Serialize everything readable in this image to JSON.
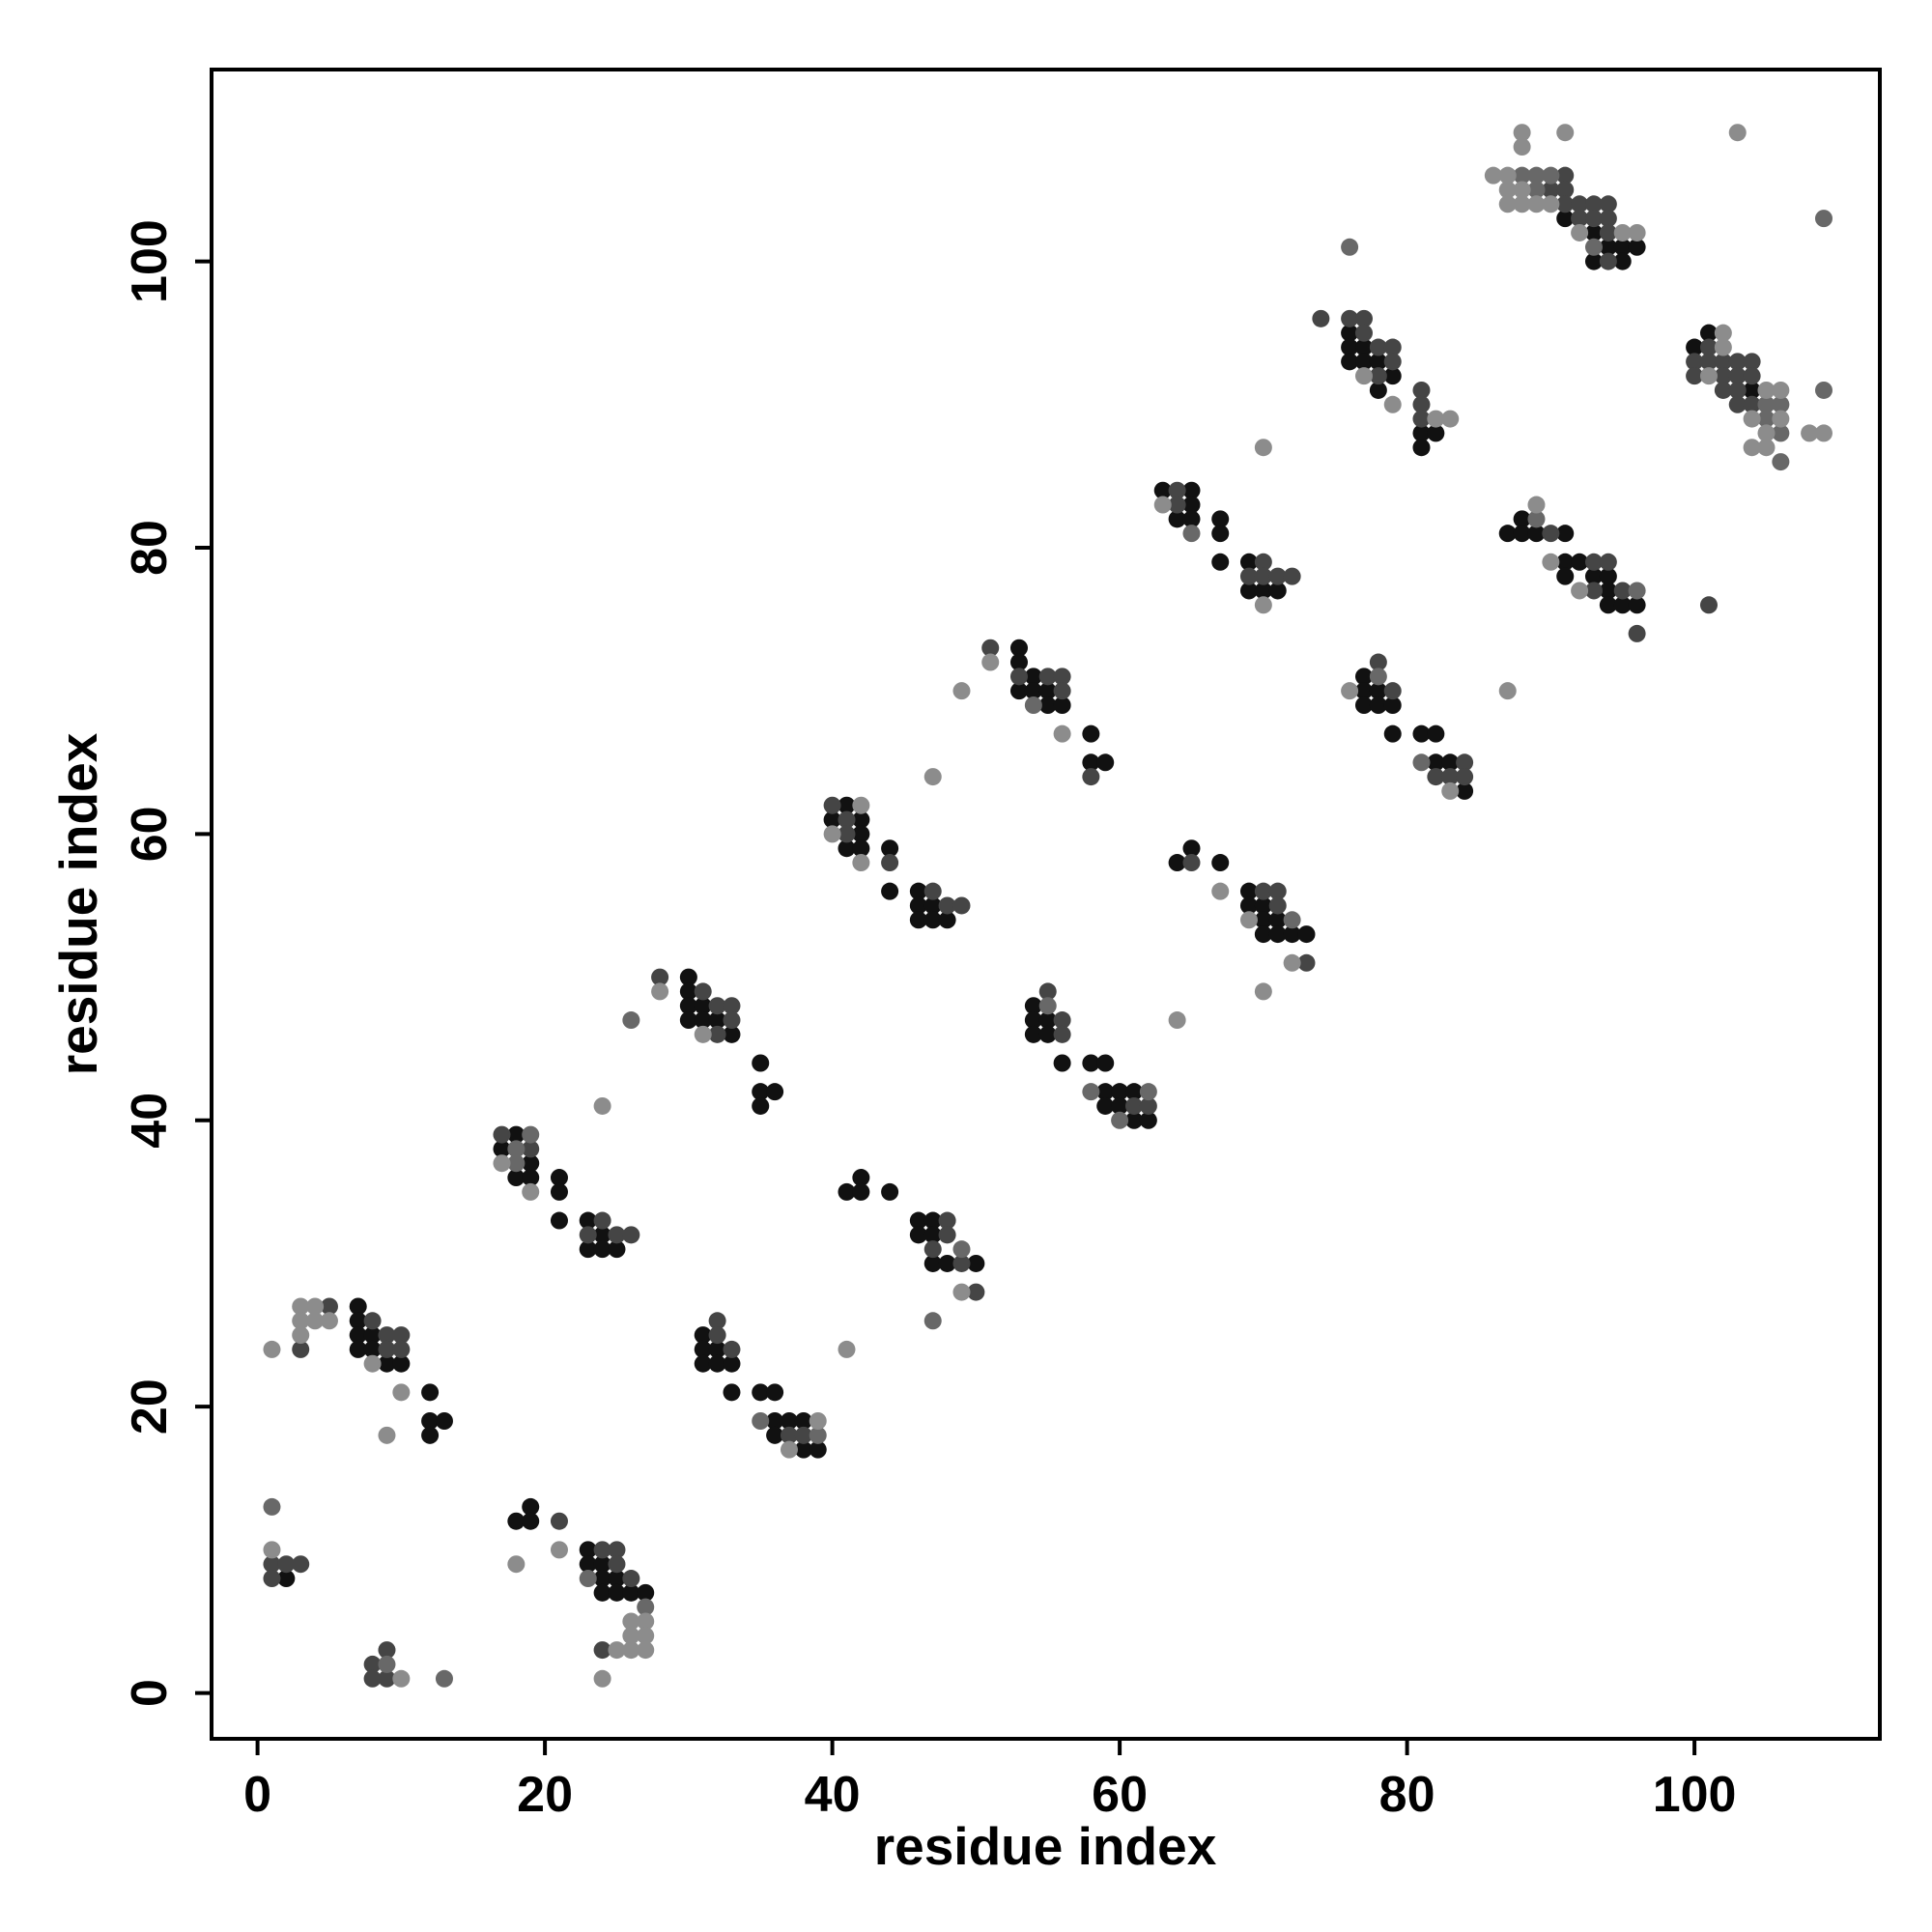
{
  "chart_data": {
    "type": "scatter",
    "xlabel": "residue index",
    "ylabel": "residue index",
    "xlim": [
      -3.2,
      112.9
    ],
    "ylim": [
      -3.2,
      113.4
    ],
    "xticks": [
      0,
      20,
      40,
      60,
      80,
      100
    ],
    "yticks": [
      0,
      20,
      40,
      60,
      80,
      100
    ],
    "series": [
      {
        "color": "#111111",
        "x": [
          2,
          7,
          7,
          7,
          7,
          8,
          8,
          9,
          10,
          12,
          12,
          12,
          13,
          18,
          19,
          19,
          23,
          23,
          24,
          24,
          24,
          25,
          25,
          26,
          27,
          17,
          18,
          18,
          19,
          19,
          21,
          21,
          21,
          23,
          23,
          24,
          24,
          25,
          30,
          30,
          30,
          30,
          31,
          31,
          32,
          33,
          35,
          35,
          35,
          36,
          31,
          31,
          31,
          32,
          32,
          33,
          33,
          35,
          36,
          36,
          36,
          37,
          38,
          38,
          39,
          40,
          41,
          41,
          42,
          42,
          42,
          44,
          44,
          46,
          46,
          46,
          47,
          47,
          48,
          41,
          42,
          42,
          44,
          46,
          46,
          47,
          47,
          47,
          48,
          50,
          53,
          53,
          53,
          54,
          54,
          55,
          55,
          56,
          58,
          58,
          59,
          54,
          54,
          54,
          55,
          55,
          56,
          58,
          59,
          59,
          59,
          60,
          60,
          61,
          61,
          62,
          63,
          64,
          65,
          65,
          65,
          67,
          67,
          67,
          69,
          69,
          70,
          71,
          64,
          65,
          67,
          69,
          69,
          70,
          70,
          70,
          71,
          71,
          72,
          73,
          76,
          76,
          76,
          77,
          77,
          78,
          78,
          79,
          81,
          81,
          82,
          77,
          77,
          77,
          78,
          78,
          79,
          79,
          81,
          82,
          82,
          83,
          84,
          91,
          93,
          93,
          94,
          95,
          95,
          96,
          87,
          88,
          88,
          89,
          91,
          91,
          91,
          92,
          93,
          94,
          94,
          94,
          95,
          96,
          100,
          101,
          104
        ],
        "values": [
          8,
          27,
          26,
          25,
          24,
          25,
          24,
          23,
          23,
          21,
          19,
          18,
          19,
          12,
          13,
          12,
          10,
          9,
          9,
          8,
          7,
          8,
          7,
          7,
          7,
          38,
          39,
          36,
          37,
          36,
          36,
          35,
          33,
          33,
          31,
          32,
          31,
          31,
          50,
          49,
          48,
          47,
          48,
          47,
          47,
          46,
          44,
          42,
          41,
          42,
          25,
          24,
          23,
          24,
          23,
          23,
          21,
          21,
          21,
          19,
          18,
          19,
          19,
          17,
          17,
          61,
          62,
          59,
          61,
          60,
          59,
          59,
          56,
          56,
          55,
          54,
          55,
          54,
          54,
          35,
          36,
          35,
          35,
          33,
          32,
          33,
          32,
          30,
          30,
          30,
          73,
          72,
          70,
          71,
          70,
          70,
          69,
          69,
          67,
          65,
          65,
          48,
          47,
          46,
          47,
          46,
          44,
          44,
          44,
          42,
          41,
          42,
          41,
          42,
          40,
          40,
          84,
          82,
          84,
          83,
          82,
          82,
          81,
          79,
          79,
          77,
          77,
          77,
          58,
          59,
          58,
          56,
          55,
          55,
          54,
          53,
          54,
          53,
          53,
          53,
          95,
          94,
          93,
          94,
          93,
          93,
          91,
          92,
          88,
          87,
          88,
          71,
          70,
          69,
          70,
          69,
          69,
          67,
          67,
          67,
          65,
          65,
          63,
          103,
          102,
          100,
          101,
          101,
          100,
          101,
          81,
          82,
          81,
          81,
          81,
          79,
          78,
          79,
          78,
          78,
          77,
          76,
          76,
          76,
          94,
          95,
          91
        ]
      },
      {
        "color": "#454545",
        "x": [
          1,
          1,
          2,
          3,
          3,
          5,
          8,
          9,
          9,
          10,
          10,
          8,
          8,
          9,
          9,
          21,
          24,
          25,
          25,
          26,
          24,
          17,
          19,
          23,
          24,
          25,
          26,
          28,
          31,
          32,
          32,
          33,
          33,
          32,
          32,
          33,
          37,
          38,
          40,
          41,
          41,
          44,
          47,
          48,
          49,
          47,
          48,
          48,
          49,
          50,
          51,
          53,
          55,
          56,
          56,
          58,
          55,
          56,
          56,
          61,
          62,
          64,
          64,
          69,
          70,
          70,
          71,
          72,
          65,
          70,
          71,
          71,
          73,
          74,
          76,
          77,
          77,
          78,
          78,
          79,
          79,
          81,
          81,
          81,
          78,
          79,
          82,
          83,
          84,
          84,
          90,
          91,
          91,
          91,
          92,
          92,
          93,
          93,
          94,
          94,
          94,
          94,
          90,
          93,
          93,
          94,
          95,
          96,
          101,
          100,
          100,
          101,
          101,
          102,
          102,
          102,
          103,
          103,
          103,
          103,
          104,
          104,
          104
        ],
        "values": [
          9,
          8,
          9,
          9,
          24,
          27,
          26,
          25,
          24,
          25,
          24,
          2,
          1,
          3,
          1,
          12,
          10,
          10,
          9,
          8,
          3,
          39,
          38,
          32,
          33,
          32,
          32,
          50,
          49,
          48,
          46,
          48,
          47,
          26,
          25,
          24,
          18,
          18,
          62,
          61,
          60,
          58,
          56,
          55,
          55,
          31,
          33,
          32,
          30,
          28,
          73,
          71,
          71,
          71,
          70,
          64,
          49,
          47,
          46,
          41,
          41,
          84,
          83,
          78,
          79,
          78,
          78,
          78,
          58,
          56,
          56,
          55,
          51,
          96,
          96,
          96,
          95,
          94,
          92,
          94,
          93,
          91,
          90,
          89,
          72,
          70,
          64,
          64,
          65,
          64,
          105,
          106,
          105,
          104,
          104,
          103,
          104,
          103,
          104,
          103,
          102,
          100,
          81,
          79,
          77,
          79,
          77,
          74,
          76,
          93,
          92,
          94,
          93,
          93,
          92,
          91,
          93,
          92,
          91,
          90,
          93,
          92,
          90
        ]
      },
      {
        "color": "#686868",
        "x": [
          1,
          9,
          13,
          23,
          27,
          26,
          18,
          18,
          35,
          39,
          55,
          58,
          60,
          62,
          54,
          65,
          72,
          76,
          78,
          81,
          89,
          88,
          89,
          89,
          90,
          93,
          96,
          109,
          105,
          105,
          106,
          106,
          106,
          109,
          49,
          47,
          19
        ],
        "values": [
          13,
          2,
          1,
          8,
          6,
          47,
          38,
          37,
          19,
          18,
          48,
          42,
          40,
          42,
          69,
          81,
          54,
          101,
          71,
          65,
          82,
          106,
          106,
          105,
          106,
          101,
          77,
          103,
          90,
          89,
          90,
          88,
          86,
          91,
          31,
          26,
          39
        ]
      },
      {
        "color": "#8c8c8c",
        "x": [
          1,
          1,
          3,
          3,
          3,
          4,
          4,
          5,
          8,
          10,
          9,
          10,
          18,
          21,
          26,
          26,
          26,
          27,
          27,
          27,
          25,
          24,
          17,
          19,
          24,
          28,
          31,
          37,
          39,
          41,
          40,
          42,
          42,
          47,
          49,
          51,
          49,
          56,
          63,
          70,
          70,
          67,
          64,
          69,
          72,
          70,
          77,
          79,
          82,
          83,
          76,
          83,
          86,
          87,
          87,
          87,
          88,
          88,
          88,
          88,
          89,
          90,
          91,
          92,
          95,
          96,
          103,
          87,
          89,
          90,
          92,
          101,
          102,
          102,
          104,
          104,
          105,
          105,
          105,
          106,
          106,
          108,
          109
        ],
        "values": [
          24,
          10,
          27,
          26,
          25,
          27,
          26,
          26,
          23,
          21,
          18,
          1,
          9,
          10,
          5,
          4,
          3,
          5,
          4,
          3,
          3,
          1,
          37,
          35,
          41,
          49,
          46,
          17,
          19,
          24,
          60,
          62,
          58,
          64,
          28,
          72,
          70,
          67,
          83,
          76,
          87,
          56,
          47,
          54,
          51,
          49,
          92,
          90,
          89,
          89,
          70,
          63,
          106,
          106,
          105,
          104,
          109,
          108,
          105,
          104,
          104,
          104,
          109,
          102,
          102,
          102,
          109,
          70,
          83,
          79,
          77,
          92,
          95,
          94,
          89,
          87,
          91,
          88,
          87,
          91,
          89,
          88,
          88
        ]
      }
    ]
  }
}
